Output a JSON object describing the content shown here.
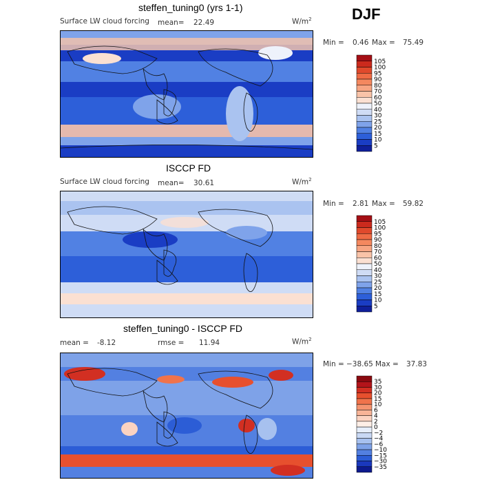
{
  "season": "DJF",
  "panels": [
    {
      "title": "steffen_tuning0 (yrs 1-1)",
      "variable": "Surface LW cloud forcing",
      "mean_label": "mean=",
      "mean": "22.49",
      "units_base": "W/m",
      "units_exp": "2",
      "min_label": "Min =",
      "min": "0.46",
      "max_label": "Max =",
      "max": "75.49"
    },
    {
      "title": "ISCCP FD",
      "variable": "Surface LW cloud forcing",
      "mean_label": "mean=",
      "mean": "30.61",
      "units_base": "W/m",
      "units_exp": "2",
      "min_label": "Min =",
      "min": "2.81",
      "max_label": "Max =",
      "max": "59.82"
    },
    {
      "title": "steffen_tuning0 - ISCCP FD",
      "mean_label": "mean =",
      "mean": "-8.12",
      "rmse_label": "rmse =",
      "rmse": "11.94",
      "units_base": "W/m",
      "units_exp": "2",
      "min_label": "Min =",
      "min": "−38.65",
      "max_label": "Max =",
      "max": "37.83"
    }
  ],
  "chart_data": [
    {
      "type": "heatmap",
      "title": "steffen_tuning0 (yrs 1-1)",
      "subtitle": "Surface LW cloud forcing",
      "units": "W/m2",
      "mean": 22.49,
      "min": 0.46,
      "max": 75.49,
      "colorbar_levels": [
        "105",
        "100",
        "95",
        "90",
        "80",
        "70",
        "60",
        "50",
        "40",
        "30",
        "25",
        "20",
        "15",
        "10",
        "5"
      ],
      "colorbar_colors": [
        "#a50f15",
        "#cb2a1d",
        "#e0492c",
        "#ef6b45",
        "#f4885f",
        "#f7a583",
        "#f9c3a8",
        "#fbe0d2",
        "#eef2fb",
        "#cfdcf5",
        "#aac3f0",
        "#7fa3ea",
        "#5181e3",
        "#2d5fd9",
        "#1a3dc4",
        "#0f1f9a"
      ]
    },
    {
      "type": "heatmap",
      "title": "ISCCP FD",
      "subtitle": "Surface LW cloud forcing",
      "units": "W/m2",
      "mean": 30.61,
      "min": 2.81,
      "max": 59.82,
      "colorbar_levels": [
        "105",
        "100",
        "95",
        "90",
        "80",
        "70",
        "60",
        "50",
        "40",
        "30",
        "25",
        "20",
        "15",
        "10",
        "5"
      ],
      "colorbar_colors": [
        "#a50f15",
        "#cb2a1d",
        "#e0492c",
        "#ef6b45",
        "#f4885f",
        "#f7a583",
        "#f9c3a8",
        "#fbe0d2",
        "#eef2fb",
        "#cfdcf5",
        "#aac3f0",
        "#7fa3ea",
        "#5181e3",
        "#2d5fd9",
        "#1a3dc4",
        "#0f1f9a"
      ]
    },
    {
      "type": "heatmap",
      "title": "steffen_tuning0 - ISCCP FD",
      "units": "W/m2",
      "mean": -8.12,
      "rmse": 11.94,
      "min": -38.65,
      "max": 37.83,
      "colorbar_levels": [
        "35",
        "30",
        "20",
        "15",
        "10",
        "6",
        "4",
        "2",
        "0",
        "−2",
        "−4",
        "−6",
        "−10",
        "−15",
        "−30",
        "−35"
      ],
      "colorbar_colors": [
        "#8b0a10",
        "#b3141a",
        "#d22f22",
        "#e7502e",
        "#f0734b",
        "#f59470",
        "#f8b497",
        "#fbd3c1",
        "#fdeee6",
        "#e6eefb",
        "#c9d9f5",
        "#a7c1ef",
        "#7ea2e8",
        "#5380e1",
        "#2c5dd6",
        "#1a38bd",
        "#0d1a8e"
      ]
    }
  ]
}
